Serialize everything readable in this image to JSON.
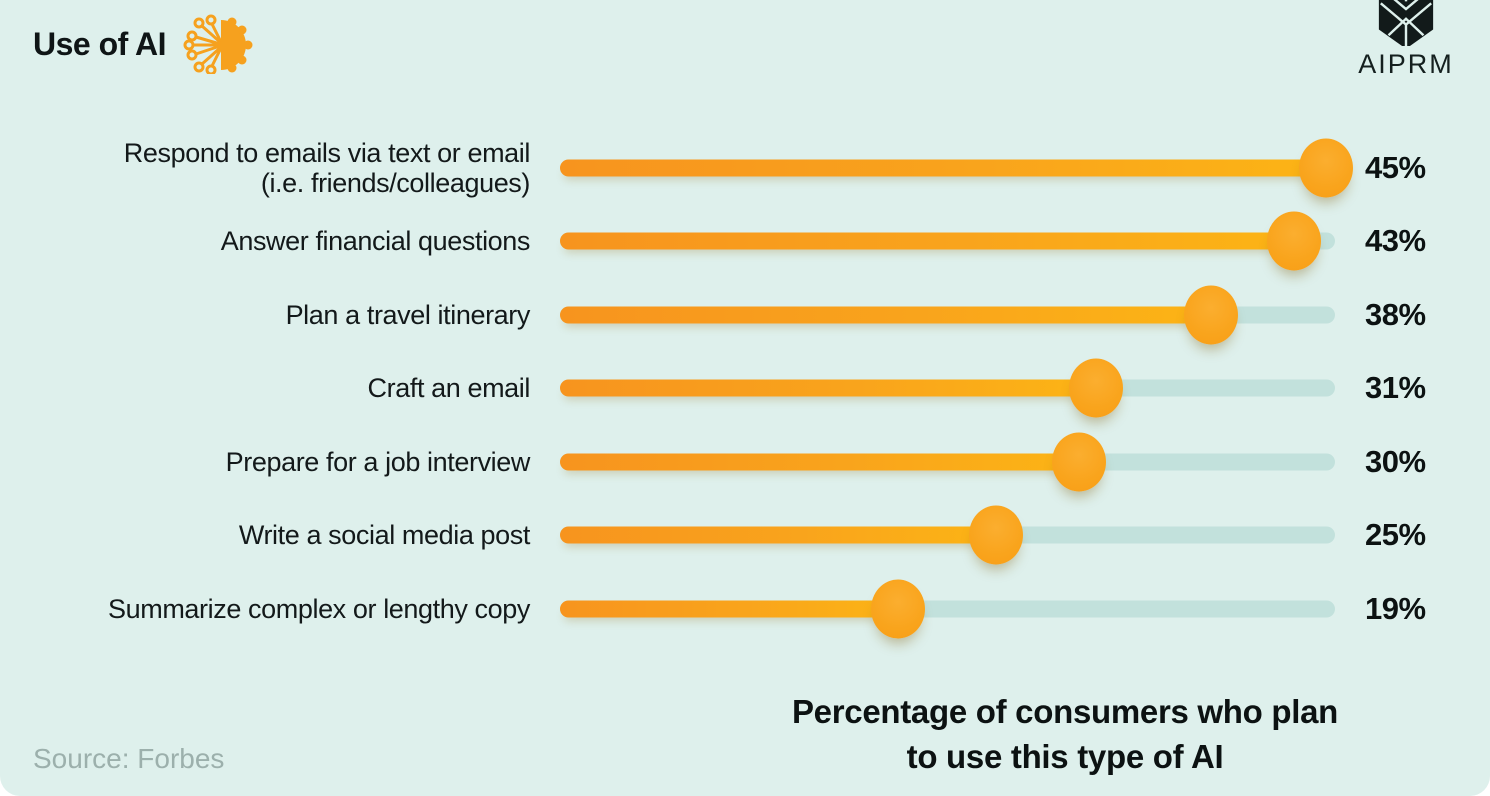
{
  "header": {
    "title": "Use of AI",
    "brand": "AIPRM"
  },
  "chart_data": {
    "type": "bar",
    "orientation": "horizontal",
    "title": "Use of AI",
    "categories": [
      "Respond to emails via text or email\n(i.e. friends/colleagues)",
      "Answer financial questions",
      "Plan a travel itinerary",
      "Craft an email",
      "Prepare for a job interview",
      "Write a social media post",
      "Summarize complex or lengthy copy"
    ],
    "values": [
      45,
      43,
      38,
      31,
      30,
      25,
      19
    ],
    "value_labels": [
      "45%",
      "43%",
      "38%",
      "31%",
      "30%",
      "25%",
      "19%"
    ],
    "xlim": [
      0,
      46
    ],
    "legend": "none",
    "grid": "off",
    "caption": "Percentage of consumers who plan to use this type of AI",
    "source": "Source: Forbes",
    "colors": {
      "background": "#def0ec",
      "track": "#c2e1dc",
      "bar_gradient_start": "#f7941e",
      "bar_gradient_end": "#fcb415",
      "dot": "#f9a41c",
      "text": "#0f1516",
      "source_text": "#9cb0ac"
    }
  }
}
